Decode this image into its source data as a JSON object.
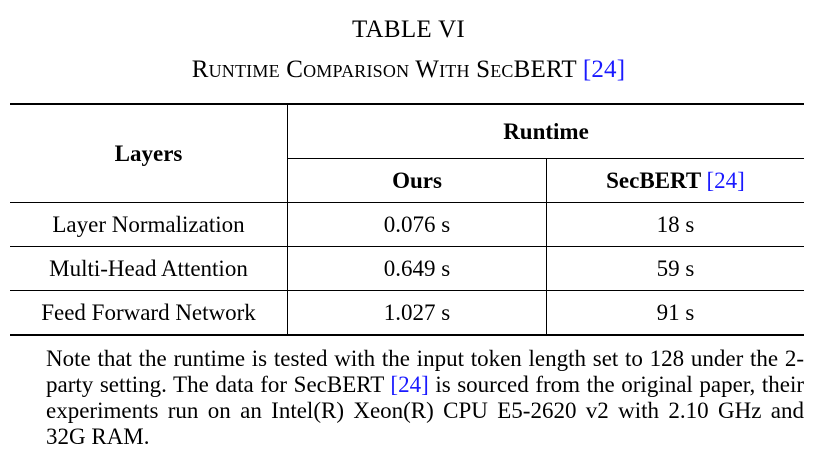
{
  "table_label": "TABLE VI",
  "caption": {
    "text": "Runtime Comparison With SecBERT",
    "ref": "[24]"
  },
  "table": {
    "header": {
      "layers": "Layers",
      "runtime": "Runtime",
      "ours": "Ours",
      "secbert": "SecBERT",
      "secbert_ref": "[24]"
    },
    "rows": [
      {
        "layer": "Layer Normalization",
        "ours": "0.076 s",
        "secbert": "18 s"
      },
      {
        "layer": "Multi-Head Attention",
        "ours": "0.649 s",
        "secbert": "59 s"
      },
      {
        "layer": "Feed Forward Network",
        "ours": "1.027 s",
        "secbert": "91 s"
      }
    ]
  },
  "note": {
    "part1": "Note that the runtime is tested with the input token length set to 128 under the 2-party setting. The data for SecBERT ",
    "ref": "[24]",
    "part2": " is sourced from the original paper, their experiments run on an Intel(R) Xeon(R) CPU E5-2620 v2 with 2.10 GHz and 32G RAM."
  },
  "colors": {
    "text": "#000000",
    "reference_link": "#1a1aff",
    "background": "#ffffff"
  }
}
